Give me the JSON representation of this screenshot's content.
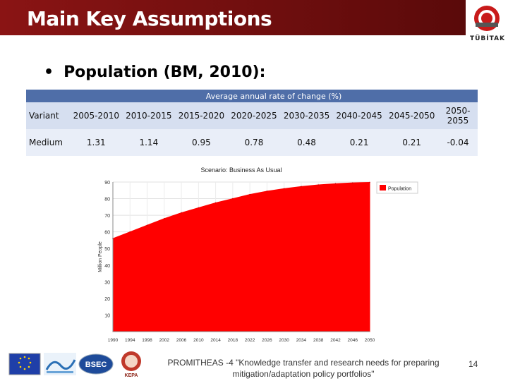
{
  "slide": {
    "title": "Main Key Assumptions",
    "bullet": "Population (BM, 2010):",
    "logo_text": "TÜBİTAK",
    "footer_text": "PROMITHEAS -4 \"Knowledge transfer and research needs for preparing mitigation/adaptation policy portfolios\"",
    "page_number": "14",
    "footer_logos": [
      "eu-flag-logo",
      "fp-logo",
      "bsec-logo",
      "kepa-logo"
    ],
    "footer_logo_labels": {
      "bsec": "BSEC",
      "kepa": "KEPA"
    }
  },
  "table": {
    "group_header": "Average annual rate of change (%)",
    "columns": [
      "Variant",
      "2005-2010",
      "2010-2015",
      "2015-2020",
      "2020-2025",
      "2030-2035",
      "2040-2045",
      "2045-2050",
      "2050-2055"
    ],
    "rows": [
      {
        "variant": "Medium",
        "values": [
          "1.31",
          "1.14",
          "0.95",
          "0.78",
          "0.48",
          "0.21",
          "0.21",
          "-0.04"
        ]
      }
    ]
  },
  "chart_data": {
    "type": "area",
    "title": "Scenario: Business As Usual",
    "ylabel": "Million People",
    "xlabel": "",
    "legend": [
      "Population"
    ],
    "legend_position": "top-right",
    "ylim": [
      0,
      90
    ],
    "yticks": [
      10,
      20,
      30,
      40,
      50,
      60,
      70,
      80,
      90
    ],
    "xticks": [
      "1990",
      "1994",
      "1998",
      "2002",
      "2006",
      "2010",
      "2014",
      "2018",
      "2022",
      "2026",
      "2030",
      "2034",
      "2038",
      "2042",
      "2046",
      "2050"
    ],
    "grid": true,
    "colors": {
      "series": "#ff0000"
    },
    "series": [
      {
        "name": "Population",
        "x": [
          1990,
          1994,
          1998,
          2002,
          2006,
          2010,
          2014,
          2018,
          2022,
          2026,
          2030,
          2034,
          2038,
          2042,
          2046,
          2050
        ],
        "values": [
          56,
          60,
          64,
          68,
          71.5,
          74.5,
          77.5,
          80,
          82.5,
          84.5,
          86,
          87.3,
          88.3,
          89,
          89.5,
          89.8
        ]
      }
    ]
  }
}
